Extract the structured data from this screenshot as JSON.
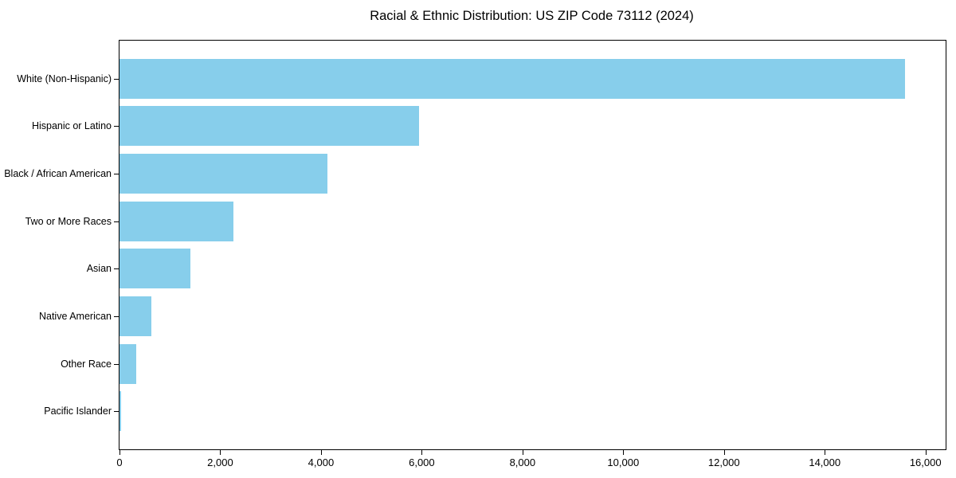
{
  "chart_data": {
    "type": "bar",
    "orientation": "horizontal",
    "title": "Racial & Ethnic Distribution: US ZIP Code 73112 (2024)",
    "categories": [
      "White (Non-Hispanic)",
      "Hispanic or Latino",
      "Black / African American",
      "Two or More Races",
      "Asian",
      "Native American",
      "Other Race",
      "Pacific Islander"
    ],
    "values": [
      15590,
      5950,
      4130,
      2260,
      1400,
      640,
      330,
      30
    ],
    "bar_color": "#87CEEB",
    "text_color": "#000000",
    "spine_color": "#000000",
    "background_color": "#ffffff",
    "xlabel": "",
    "ylabel": "",
    "xlim": [
      0,
      16400
    ],
    "xticks": [
      0,
      2000,
      4000,
      6000,
      8000,
      10000,
      12000,
      14000,
      16000
    ],
    "xtick_labels": [
      "0",
      "2,000",
      "4,000",
      "6,000",
      "8,000",
      "10,000",
      "12,000",
      "14,000",
      "16,000"
    ],
    "grid": false,
    "legend": null
  }
}
